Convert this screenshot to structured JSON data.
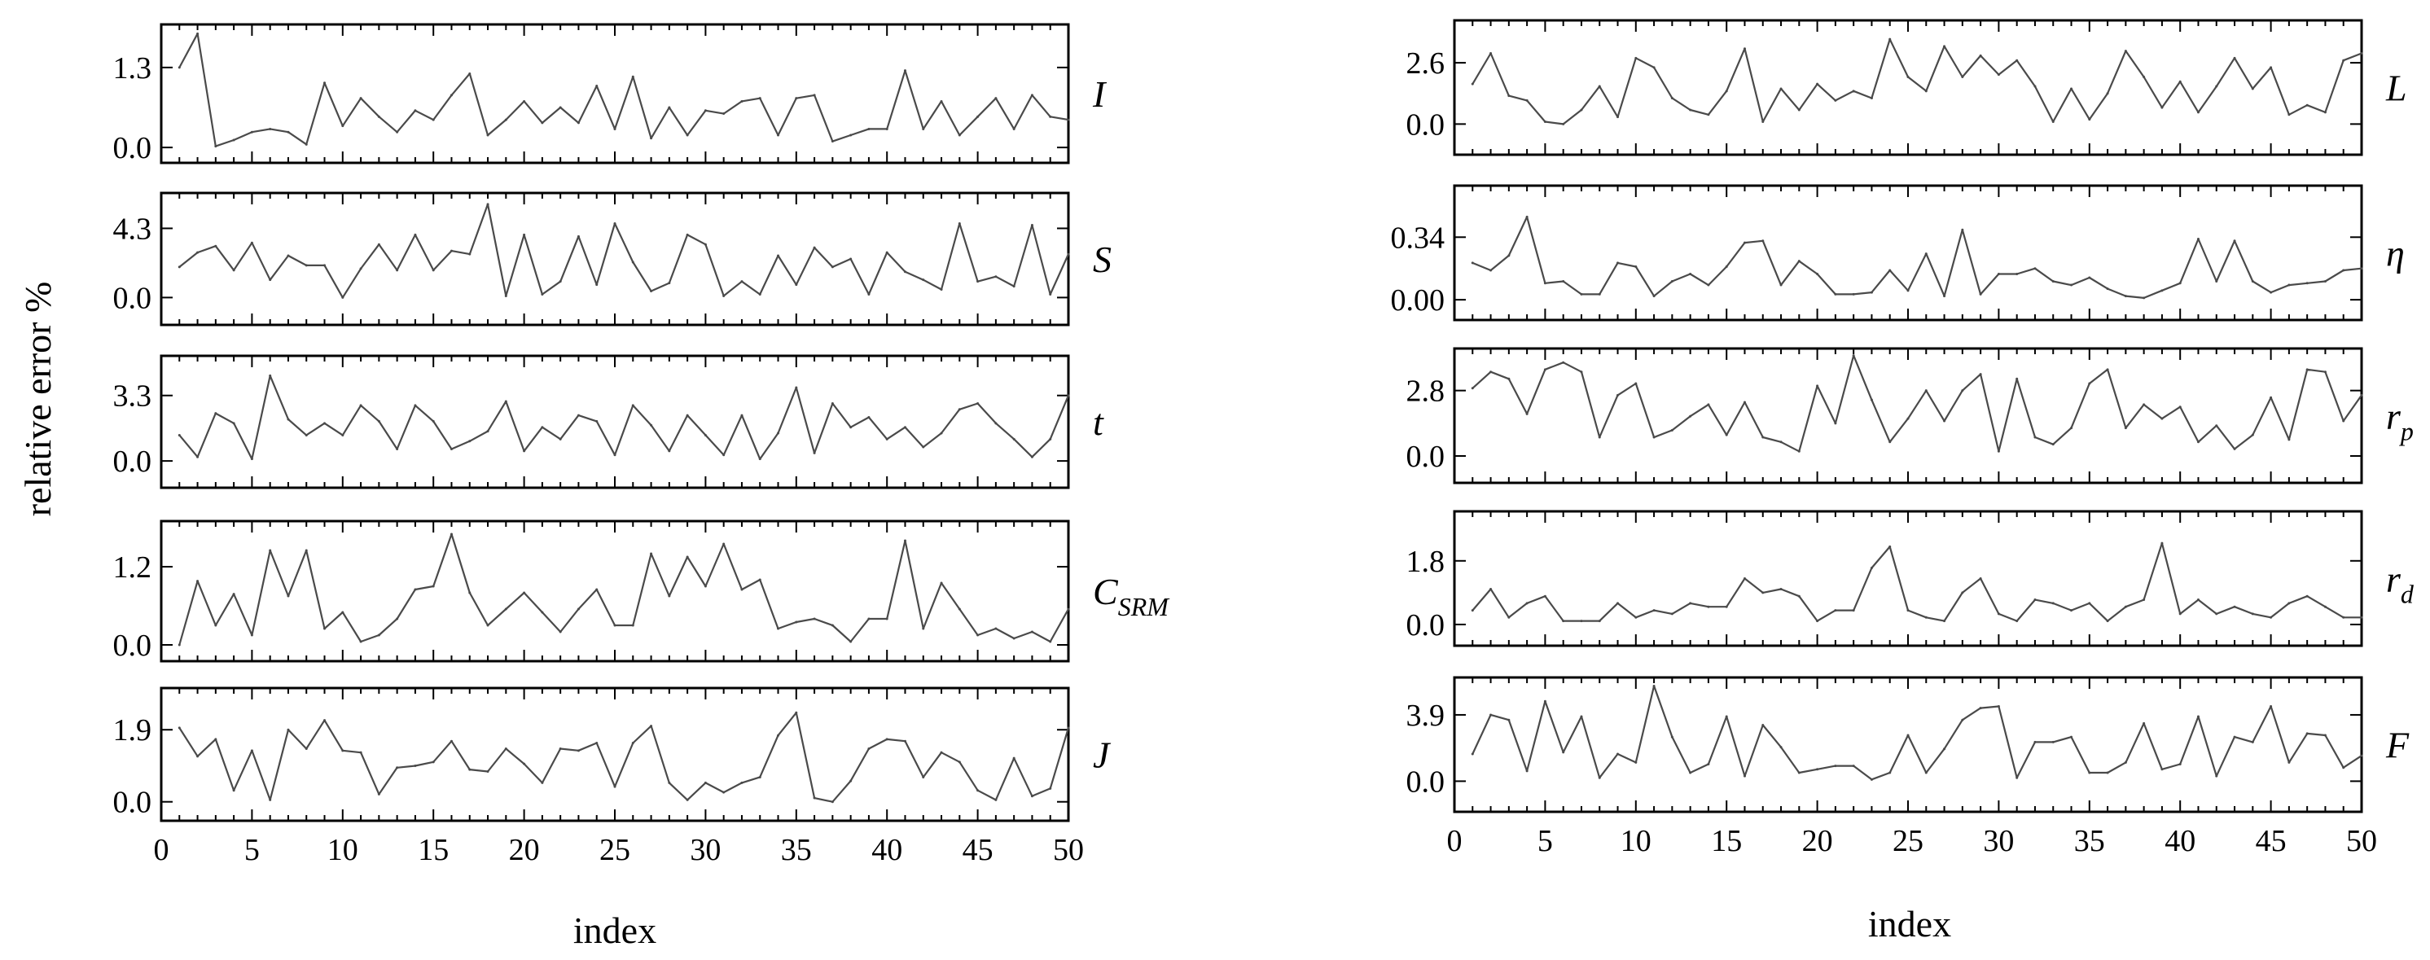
{
  "figure": {
    "ylabel": "relative error %",
    "left_xlabel": "index",
    "right_xlabel": "index"
  },
  "chart_data": [
    {
      "type": "line",
      "label": "I",
      "yticks": [
        0.0,
        1.3
      ],
      "ytick_labels": [
        "0.0",
        "1.3"
      ],
      "xlim": [
        0,
        50
      ],
      "ylim": [
        -0.25,
        2.0
      ],
      "values": [
        1.3,
        1.85,
        0.02,
        0.12,
        0.25,
        0.3,
        0.25,
        0.05,
        1.05,
        0.35,
        0.8,
        0.5,
        0.25,
        0.6,
        0.45,
        0.85,
        1.2,
        0.2,
        0.45,
        0.75,
        0.4,
        0.65,
        0.4,
        1.0,
        0.3,
        1.15,
        0.15,
        0.65,
        0.2,
        0.6,
        0.55,
        0.75,
        0.8,
        0.2,
        0.8,
        0.85,
        0.1,
        0.2,
        0.3,
        0.3,
        1.25,
        0.3,
        0.75,
        0.2,
        0.5,
        0.8,
        0.3,
        0.85,
        0.5,
        0.45
      ]
    },
    {
      "type": "line",
      "label": "S",
      "yticks": [
        0.0,
        4.3
      ],
      "ytick_labels": [
        "0.0",
        "4.3"
      ],
      "xlim": [
        0,
        50
      ],
      "ylim": [
        -1.7,
        6.5
      ],
      "values": [
        1.9,
        2.8,
        3.2,
        1.7,
        3.4,
        1.1,
        2.6,
        2.0,
        2.0,
        0.0,
        1.8,
        3.3,
        1.7,
        3.9,
        1.7,
        2.9,
        2.7,
        5.8,
        0.1,
        3.9,
        0.2,
        1.0,
        3.8,
        0.8,
        4.6,
        2.2,
        0.4,
        0.9,
        3.9,
        3.3,
        0.1,
        1.0,
        0.2,
        2.6,
        0.8,
        3.1,
        1.9,
        2.4,
        0.2,
        2.8,
        1.6,
        1.1,
        0.5,
        4.6,
        1.0,
        1.3,
        0.7,
        4.5,
        0.2,
        2.7
      ]
    },
    {
      "type": "line",
      "label": "t",
      "yticks": [
        0.0,
        3.3
      ],
      "ytick_labels": [
        "0.0",
        "3.3"
      ],
      "xlim": [
        0,
        50
      ],
      "ylim": [
        -1.35,
        5.3
      ],
      "values": [
        1.3,
        0.2,
        2.4,
        1.9,
        0.1,
        4.3,
        2.1,
        1.3,
        1.9,
        1.3,
        2.8,
        2.0,
        0.6,
        2.8,
        2.0,
        0.6,
        1.0,
        1.5,
        3.0,
        0.5,
        1.7,
        1.1,
        2.3,
        2.0,
        0.3,
        2.8,
        1.8,
        0.5,
        2.3,
        1.3,
        0.3,
        2.3,
        0.1,
        1.4,
        3.7,
        0.4,
        2.9,
        1.7,
        2.2,
        1.1,
        1.7,
        0.7,
        1.4,
        2.6,
        2.9,
        1.9,
        1.1,
        0.2,
        1.1,
        3.3
      ]
    },
    {
      "type": "line",
      "label": "CSRM",
      "label_main": "C",
      "label_sub": "SRM",
      "yticks": [
        0.0,
        1.2
      ],
      "ytick_labels": [
        "0.0",
        "1.2"
      ],
      "xlim": [
        0,
        50
      ],
      "ylim": [
        -0.25,
        1.9
      ],
      "values": [
        0.0,
        0.98,
        0.3,
        0.78,
        0.15,
        1.45,
        0.75,
        1.45,
        0.25,
        0.5,
        0.05,
        0.15,
        0.4,
        0.85,
        0.9,
        1.7,
        0.8,
        0.3,
        0.55,
        0.8,
        0.5,
        0.2,
        0.55,
        0.85,
        0.3,
        0.3,
        1.4,
        0.75,
        1.35,
        0.9,
        1.55,
        0.85,
        1.0,
        0.25,
        0.35,
        0.4,
        0.3,
        0.05,
        0.4,
        0.4,
        1.6,
        0.25,
        0.95,
        0.55,
        0.15,
        0.25,
        0.1,
        0.2,
        0.05,
        0.55
      ]
    },
    {
      "type": "line",
      "label": "J",
      "yticks": [
        0.0,
        1.9
      ],
      "ytick_labels": [
        "0.0",
        "1.9"
      ],
      "xlim": [
        0,
        50
      ],
      "ylim": [
        -0.5,
        3.0
      ],
      "values": [
        1.95,
        1.2,
        1.65,
        0.3,
        1.35,
        0.05,
        1.9,
        1.4,
        2.15,
        1.35,
        1.3,
        0.2,
        0.9,
        0.95,
        1.05,
        1.6,
        0.85,
        0.8,
        1.4,
        1.0,
        0.5,
        1.4,
        1.35,
        1.55,
        0.4,
        1.55,
        2.0,
        0.5,
        0.05,
        0.5,
        0.25,
        0.5,
        0.65,
        1.75,
        2.35,
        0.1,
        0.0,
        0.55,
        1.4,
        1.65,
        1.6,
        0.65,
        1.3,
        1.05,
        0.3,
        0.05,
        1.15,
        0.15,
        0.35,
        1.95
      ]
    },
    {
      "type": "line",
      "label": "L",
      "yticks": [
        0.0,
        2.6
      ],
      "ytick_labels": [
        "0.0",
        "2.6"
      ],
      "xlim": [
        0,
        50
      ],
      "ylim": [
        -1.3,
        4.4
      ],
      "values": [
        1.7,
        3.0,
        1.2,
        1.0,
        0.1,
        0.0,
        0.6,
        1.6,
        0.3,
        2.8,
        2.4,
        1.1,
        0.6,
        0.4,
        1.4,
        3.2,
        0.1,
        1.5,
        0.6,
        1.7,
        1.0,
        1.4,
        1.1,
        3.6,
        2.0,
        1.4,
        3.3,
        2.0,
        2.9,
        2.1,
        2.7,
        1.6,
        0.1,
        1.5,
        0.2,
        1.3,
        3.1,
        2.0,
        0.7,
        1.8,
        0.5,
        1.6,
        2.8,
        1.5,
        2.4,
        0.4,
        0.8,
        0.5,
        2.7,
        3.0
      ]
    },
    {
      "type": "line",
      "label": "η",
      "yticks": [
        0.0,
        0.34
      ],
      "ytick_labels": [
        "0.00",
        "0.34"
      ],
      "xlim": [
        0,
        50
      ],
      "ylim": [
        -0.11,
        0.62
      ],
      "values": [
        0.2,
        0.16,
        0.24,
        0.45,
        0.09,
        0.1,
        0.03,
        0.03,
        0.2,
        0.18,
        0.02,
        0.1,
        0.14,
        0.08,
        0.18,
        0.31,
        0.32,
        0.08,
        0.21,
        0.14,
        0.03,
        0.03,
        0.04,
        0.16,
        0.05,
        0.25,
        0.02,
        0.38,
        0.03,
        0.14,
        0.14,
        0.17,
        0.1,
        0.08,
        0.12,
        0.06,
        0.02,
        0.01,
        0.05,
        0.09,
        0.33,
        0.1,
        0.32,
        0.1,
        0.04,
        0.08,
        0.09,
        0.1,
        0.16,
        0.17
      ]
    },
    {
      "type": "line",
      "label": "rp",
      "label_main": "r",
      "label_sub": "p",
      "yticks": [
        0.0,
        2.8
      ],
      "ytick_labels": [
        "0.0",
        "2.8"
      ],
      "xlim": [
        0,
        50
      ],
      "ylim": [
        -1.15,
        4.6
      ],
      "values": [
        2.9,
        3.6,
        3.3,
        1.8,
        3.7,
        4.0,
        3.6,
        0.8,
        2.6,
        3.1,
        0.8,
        1.1,
        1.7,
        2.2,
        0.9,
        2.3,
        0.8,
        0.6,
        0.2,
        3.0,
        1.4,
        4.3,
        2.4,
        0.6,
        1.6,
        2.8,
        1.5,
        2.8,
        3.5,
        0.2,
        3.3,
        0.8,
        0.5,
        1.2,
        3.1,
        3.7,
        1.2,
        2.2,
        1.6,
        2.1,
        0.6,
        1.3,
        0.3,
        0.9,
        2.5,
        0.7,
        3.7,
        3.6,
        1.5,
        2.6
      ]
    },
    {
      "type": "line",
      "label": "rd",
      "label_main": "r",
      "label_sub": "d",
      "yticks": [
        0.0,
        1.8
      ],
      "ytick_labels": [
        "0.0",
        "1.8"
      ],
      "xlim": [
        0,
        50
      ],
      "ylim": [
        -0.6,
        3.2
      ],
      "values": [
        0.4,
        1.0,
        0.2,
        0.6,
        0.8,
        0.1,
        0.1,
        0.1,
        0.6,
        0.2,
        0.4,
        0.3,
        0.6,
        0.5,
        0.5,
        1.3,
        0.9,
        1.0,
        0.8,
        0.1,
        0.4,
        0.4,
        1.6,
        2.2,
        0.4,
        0.2,
        0.1,
        0.9,
        1.3,
        0.3,
        0.1,
        0.7,
        0.6,
        0.4,
        0.6,
        0.1,
        0.5,
        0.7,
        2.3,
        0.3,
        0.7,
        0.3,
        0.5,
        0.3,
        0.2,
        0.6,
        0.8,
        0.5,
        0.2,
        0.2
      ]
    },
    {
      "type": "line",
      "label": "F",
      "yticks": [
        0.0,
        3.9
      ],
      "ytick_labels": [
        "0.0",
        "3.9"
      ],
      "xlim": [
        0,
        50
      ],
      "ylim": [
        -1.8,
        6.1
      ],
      "values": [
        1.6,
        3.9,
        3.6,
        0.6,
        4.7,
        1.7,
        3.8,
        0.2,
        1.6,
        1.1,
        5.6,
        2.6,
        0.5,
        1.0,
        3.8,
        0.3,
        3.3,
        2.0,
        0.5,
        0.7,
        0.9,
        0.9,
        0.1,
        0.5,
        2.7,
        0.5,
        1.9,
        3.6,
        4.3,
        4.4,
        0.2,
        2.3,
        2.3,
        2.6,
        0.5,
        0.5,
        1.1,
        3.4,
        0.7,
        1.0,
        3.8,
        0.3,
        2.6,
        2.3,
        4.4,
        1.1,
        2.8,
        2.7,
        0.8,
        1.5
      ]
    }
  ]
}
